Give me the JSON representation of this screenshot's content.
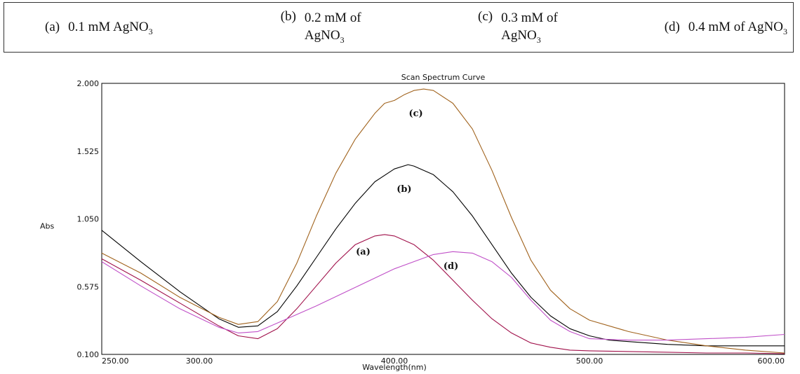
{
  "legend": [
    {
      "tag": "(a)",
      "text": "0.1 mM AgNO",
      "sub": "3"
    },
    {
      "tag": "(b)",
      "text": "0.2 mM of AgNO",
      "sub": "3"
    },
    {
      "tag": "(c)",
      "text": "0.3 mM of AgNO",
      "sub": "3"
    },
    {
      "tag": "(d)",
      "text": "0.4 mM of AgNO",
      "sub": "3"
    }
  ],
  "chart_data": {
    "type": "line",
    "title": "Scan Spectrum Curve",
    "xlabel": "Wavelength(nm)",
    "ylabel": "Abs",
    "xlim": [
      250,
      600
    ],
    "ylim": [
      0.1,
      2.0
    ],
    "x_ticks": [
      "250.00",
      "300.00",
      "400.00",
      "500.00",
      "600.00"
    ],
    "x_tick_values": [
      250,
      300,
      400,
      500,
      600
    ],
    "y_ticks": [
      "2.000",
      "1.525",
      "1.050",
      "0.575",
      "0.100"
    ],
    "y_tick_values": [
      2.0,
      1.525,
      1.05,
      0.575,
      0.1
    ],
    "grid": false,
    "series": [
      {
        "name": "(a)",
        "color": "#a0104a",
        "x": [
          250,
          270,
          290,
          310,
          320,
          330,
          340,
          350,
          360,
          370,
          380,
          390,
          395,
          400,
          410,
          420,
          430,
          440,
          450,
          460,
          470,
          480,
          490,
          500,
          520,
          540,
          560,
          580,
          600
        ],
        "y": [
          0.77,
          0.62,
          0.46,
          0.3,
          0.23,
          0.21,
          0.28,
          0.42,
          0.58,
          0.74,
          0.87,
          0.93,
          0.94,
          0.93,
          0.87,
          0.76,
          0.62,
          0.48,
          0.35,
          0.25,
          0.18,
          0.15,
          0.13,
          0.125,
          0.12,
          0.115,
          0.11,
          0.11,
          0.105
        ]
      },
      {
        "name": "(b)",
        "color": "#000000",
        "x": [
          250,
          270,
          290,
          310,
          320,
          330,
          340,
          350,
          360,
          370,
          380,
          390,
          400,
          407,
          410,
          420,
          430,
          440,
          450,
          460,
          470,
          480,
          490,
          500,
          510,
          520,
          540,
          560,
          580,
          600
        ],
        "y": [
          0.97,
          0.75,
          0.54,
          0.35,
          0.29,
          0.3,
          0.4,
          0.58,
          0.78,
          0.98,
          1.16,
          1.31,
          1.4,
          1.43,
          1.42,
          1.36,
          1.24,
          1.07,
          0.87,
          0.67,
          0.5,
          0.37,
          0.28,
          0.23,
          0.2,
          0.19,
          0.17,
          0.16,
          0.16,
          0.16
        ]
      },
      {
        "name": "(c)",
        "color": "#a0621c",
        "x": [
          250,
          270,
          290,
          310,
          320,
          330,
          340,
          350,
          360,
          370,
          380,
          390,
          395,
          400,
          405,
          410,
          415,
          420,
          430,
          440,
          450,
          460,
          470,
          480,
          490,
          500,
          520,
          540,
          560,
          580,
          600
        ],
        "y": [
          0.81,
          0.67,
          0.5,
          0.36,
          0.31,
          0.33,
          0.47,
          0.74,
          1.07,
          1.37,
          1.61,
          1.79,
          1.86,
          1.88,
          1.92,
          1.95,
          1.96,
          1.95,
          1.86,
          1.68,
          1.39,
          1.06,
          0.76,
          0.55,
          0.42,
          0.34,
          0.26,
          0.2,
          0.16,
          0.13,
          0.11
        ]
      },
      {
        "name": "(d)",
        "color": "#c050c8",
        "x": [
          250,
          270,
          290,
          310,
          320,
          330,
          340,
          360,
          380,
          400,
          420,
          430,
          440,
          450,
          460,
          470,
          480,
          490,
          500,
          520,
          540,
          560,
          580,
          600
        ],
        "y": [
          0.75,
          0.58,
          0.42,
          0.29,
          0.25,
          0.26,
          0.32,
          0.44,
          0.57,
          0.7,
          0.8,
          0.82,
          0.81,
          0.75,
          0.64,
          0.48,
          0.34,
          0.26,
          0.21,
          0.2,
          0.2,
          0.21,
          0.22,
          0.24
        ]
      }
    ],
    "annotations": [
      {
        "text": "(a)",
        "x": 384,
        "y": 0.8
      },
      {
        "text": "(b)",
        "x": 405,
        "y": 1.24
      },
      {
        "text": "(c)",
        "x": 411,
        "y": 1.77
      },
      {
        "text": "(d)",
        "x": 429,
        "y": 0.7
      }
    ]
  }
}
